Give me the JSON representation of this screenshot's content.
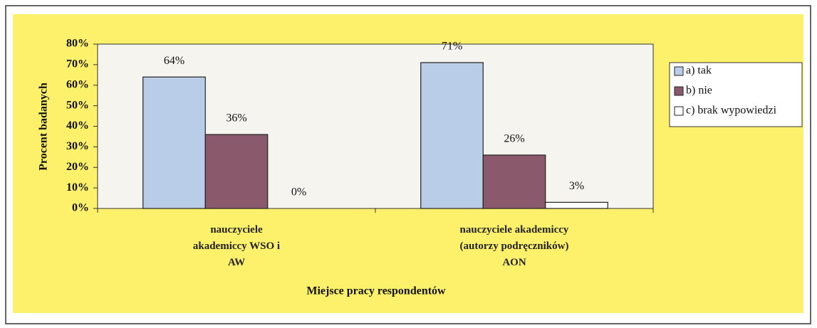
{
  "chart_data": {
    "type": "bar",
    "y_label": "Procent badanych",
    "x_label": "Miejsce pracy respondentów",
    "categories": [
      "nauczyciele akademiccy WSO i AW",
      "nauczyciele akademiccy (autorzy podręczników) AON"
    ],
    "series": [
      {
        "name": "a) tak",
        "color": "#b9cde9",
        "values": [
          64,
          71
        ],
        "value_labels": [
          "64%",
          "71%"
        ]
      },
      {
        "name": "b) nie",
        "color": "#8a5a6c",
        "values": [
          36,
          26
        ],
        "value_labels": [
          "36%",
          "26%"
        ]
      },
      {
        "name": "c) brak wypowiedzi",
        "color": "#ffffff",
        "values": [
          0,
          3
        ],
        "value_labels": [
          "0%",
          "3%"
        ]
      }
    ],
    "ylim": [
      0,
      80
    ],
    "yticks": [
      {
        "value": 0,
        "label": "0%"
      },
      {
        "value": 10,
        "label": "10%"
      },
      {
        "value": 20,
        "label": "20%"
      },
      {
        "value": 30,
        "label": "30%"
      },
      {
        "value": 40,
        "label": "40%"
      },
      {
        "value": 50,
        "label": "50%"
      },
      {
        "value": 60,
        "label": "60%"
      },
      {
        "value": 70,
        "label": "70%"
      },
      {
        "value": 80,
        "label": "80%"
      }
    ],
    "grid": false,
    "legend": "right"
  }
}
